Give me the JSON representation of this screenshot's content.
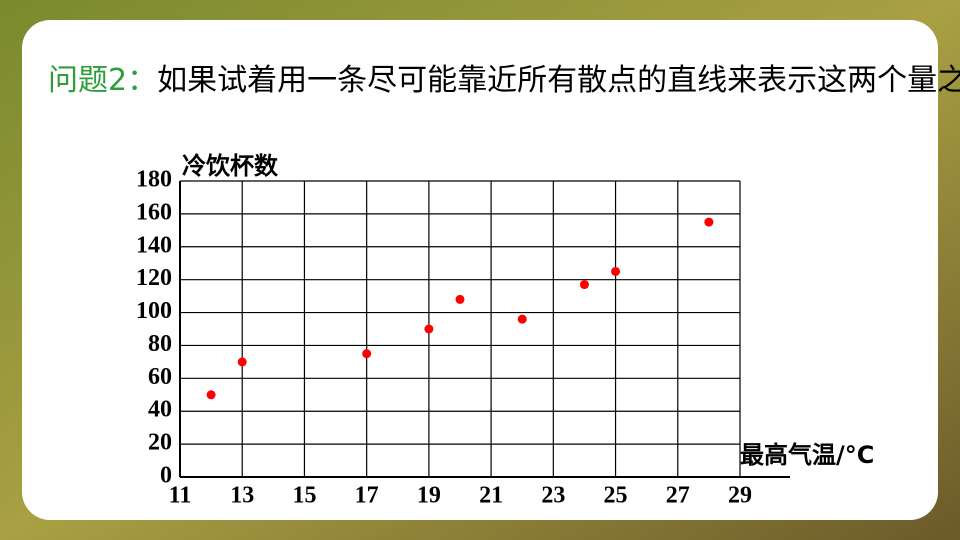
{
  "question_label": "问题2：",
  "question": "如果试着用一条尽可能靠近所有散点的直线来表示这两个量之间的关系，你能试着画出这条线吗?",
  "chart_data": {
    "type": "scatter",
    "ylabel": "冷饮杯数",
    "xlabel": "最高气温/°C",
    "x": [
      12,
      13,
      17,
      19,
      20,
      22,
      24,
      25,
      28
    ],
    "values": [
      50,
      70,
      75,
      90,
      108,
      96,
      117,
      125,
      155
    ],
    "color": "#ff0000",
    "xlim": [
      11,
      29
    ],
    "xticks": [
      11,
      13,
      15,
      17,
      19,
      21,
      23,
      25,
      27,
      29
    ],
    "ylim": [
      0,
      180
    ],
    "yticks": [
      0,
      20,
      40,
      60,
      80,
      100,
      120,
      140,
      160,
      180
    ],
    "grid": true
  }
}
